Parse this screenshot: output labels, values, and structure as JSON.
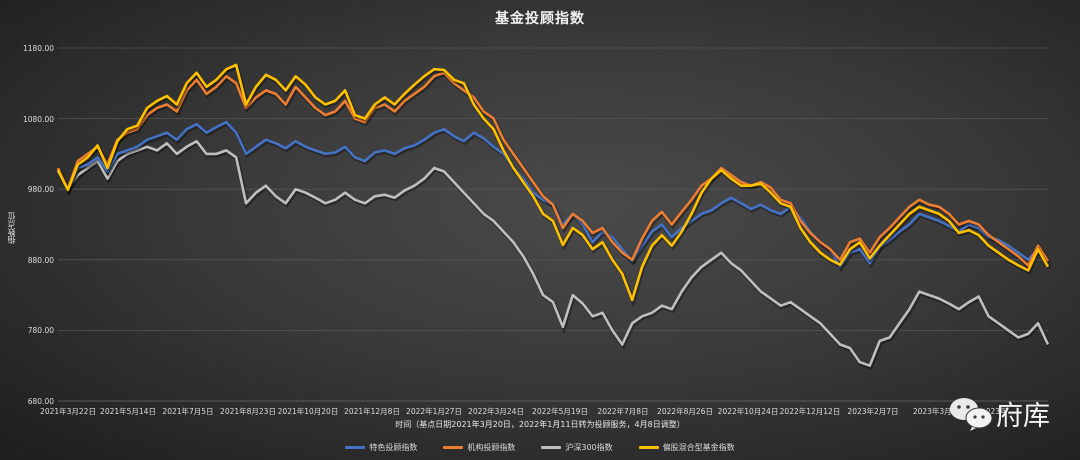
{
  "chart_data": {
    "type": "line",
    "title": "基金投顾指数",
    "xlabel": "时间（基点日期2021年3月20日，2022年1月11日转为投顾服务，4月8日调整）",
    "ylabel": "指数点位",
    "ylim": [
      680,
      1180
    ],
    "yticks": [
      "1180.00",
      "1080.00",
      "980.00",
      "880.00",
      "780.00",
      "680.00"
    ],
    "xticks": [
      "2021年3月22日",
      "2021年5月14日",
      "2021年7月5日",
      "2021年8月23日",
      "2021年10月20日",
      "2021年12月8日",
      "2022年1月27日",
      "2022年3月24日",
      "2022年5月19日",
      "2022年7月8日",
      "2022年8月26日",
      "2022年10月24日",
      "2022年12月12日",
      "2023年2月7日",
      "2023年3月…",
      "2023年…"
    ],
    "grid": true,
    "legend_position": "bottom",
    "series": [
      {
        "name": "特色投顾指数",
        "color": "#4472C4",
        "values": [
          1005,
          982,
          1010,
          1015,
          1025,
          1005,
          1030,
          1035,
          1040,
          1050,
          1055,
          1060,
          1050,
          1065,
          1072,
          1060,
          1068,
          1075,
          1060,
          1030,
          1040,
          1050,
          1045,
          1038,
          1048,
          1040,
          1035,
          1030,
          1032,
          1040,
          1025,
          1020,
          1032,
          1035,
          1030,
          1038,
          1042,
          1050,
          1060,
          1065,
          1055,
          1048,
          1060,
          1052,
          1040,
          1030,
          1010,
          995,
          975,
          965,
          958,
          930,
          945,
          930,
          905,
          920,
          912,
          895,
          878,
          900,
          920,
          930,
          912,
          925,
          935,
          945,
          950,
          960,
          968,
          960,
          952,
          958,
          950,
          945,
          955,
          940,
          920,
          905,
          895,
          870,
          890,
          895,
          875,
          898,
          908,
          920,
          930,
          945,
          940,
          935,
          928,
          920,
          930,
          925,
          912,
          908,
          900,
          890,
          880,
          895,
          872
        ]
      },
      {
        "name": "机构投顾指数",
        "color": "#ED7D31",
        "values": [
          1010,
          980,
          1020,
          1030,
          1040,
          1015,
          1050,
          1060,
          1065,
          1085,
          1095,
          1100,
          1090,
          1120,
          1135,
          1115,
          1125,
          1140,
          1130,
          1095,
          1110,
          1120,
          1115,
          1100,
          1125,
          1110,
          1095,
          1085,
          1090,
          1105,
          1080,
          1075,
          1095,
          1100,
          1090,
          1105,
          1115,
          1125,
          1140,
          1145,
          1130,
          1120,
          1110,
          1090,
          1080,
          1050,
          1030,
          1010,
          990,
          970,
          958,
          925,
          945,
          935,
          918,
          925,
          905,
          890,
          880,
          910,
          935,
          948,
          930,
          948,
          965,
          985,
          995,
          1010,
          1000,
          990,
          985,
          990,
          982,
          965,
          960,
          935,
          918,
          905,
          895,
          880,
          905,
          910,
          890,
          912,
          925,
          940,
          955,
          965,
          958,
          955,
          945,
          930,
          935,
          930,
          915,
          905,
          895,
          885,
          872,
          900,
          878
        ]
      },
      {
        "name": "沪深300指数",
        "color": "#BFBFBF",
        "values": [
          1005,
          980,
          1000,
          1010,
          1020,
          995,
          1020,
          1030,
          1035,
          1040,
          1035,
          1045,
          1030,
          1040,
          1048,
          1030,
          1030,
          1035,
          1025,
          960,
          975,
          985,
          970,
          960,
          980,
          975,
          968,
          960,
          965,
          975,
          965,
          960,
          970,
          972,
          968,
          978,
          985,
          995,
          1010,
          1005,
          990,
          975,
          960,
          945,
          935,
          920,
          905,
          885,
          860,
          830,
          820,
          785,
          830,
          818,
          800,
          805,
          780,
          760,
          790,
          800,
          805,
          815,
          810,
          835,
          855,
          870,
          880,
          890,
          875,
          865,
          850,
          835,
          825,
          815,
          820,
          810,
          800,
          790,
          775,
          760,
          755,
          735,
          730,
          765,
          770,
          790,
          810,
          835,
          830,
          825,
          818,
          810,
          820,
          828,
          800,
          790,
          780,
          770,
          775,
          790,
          760
        ]
      },
      {
        "name": "偏股混合型基金指数",
        "color": "#FFC000",
        "values": [
          1007,
          979,
          1015,
          1025,
          1042,
          1010,
          1048,
          1065,
          1070,
          1095,
          1105,
          1112,
          1100,
          1130,
          1145,
          1125,
          1135,
          1150,
          1156,
          1100,
          1125,
          1142,
          1135,
          1120,
          1140,
          1128,
          1110,
          1100,
          1105,
          1120,
          1085,
          1080,
          1100,
          1110,
          1100,
          1115,
          1128,
          1140,
          1150,
          1149,
          1135,
          1130,
          1100,
          1080,
          1065,
          1035,
          1010,
          990,
          970,
          945,
          935,
          901,
          925,
          915,
          895,
          905,
          880,
          860,
          823,
          870,
          900,
          915,
          900,
          920,
          945,
          975,
          995,
          1007,
          995,
          985,
          985,
          988,
          975,
          960,
          955,
          925,
          905,
          890,
          880,
          873,
          895,
          905,
          882,
          900,
          915,
          930,
          945,
          955,
          950,
          945,
          935,
          918,
          922,
          915,
          900,
          890,
          880,
          872,
          865,
          895,
          870
        ]
      }
    ]
  },
  "title": "基金投顾指数",
  "axis": {
    "ylabel": "指数点位",
    "xlabel": "时间（基点日期2021年3月20日，2022年1月11日转为投顾服务，4月8日调整）"
  },
  "legend": [
    {
      "label": "特色投顾指数",
      "color": "#4472C4"
    },
    {
      "label": "机构投顾指数",
      "color": "#ED7D31"
    },
    {
      "label": "沪深300指数",
      "color": "#BFBFBF"
    },
    {
      "label": "偏股混合型基金指数",
      "color": "#FFC000"
    }
  ],
  "watermark": {
    "text": "府库",
    "icon": "wechat-icon"
  }
}
